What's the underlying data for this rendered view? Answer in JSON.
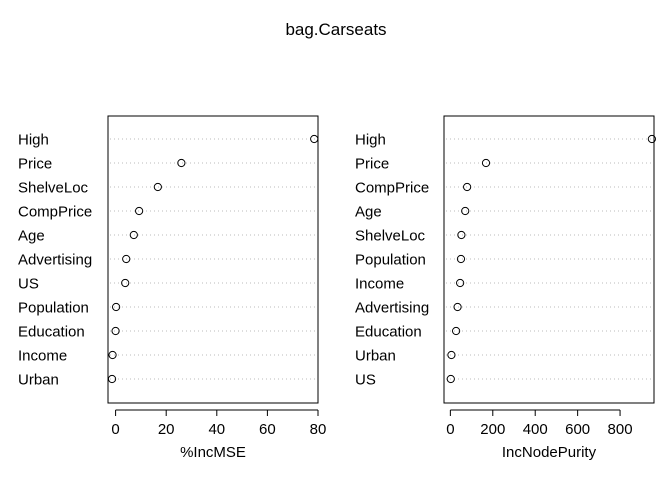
{
  "title": "bag.Carseats",
  "chart_data": [
    {
      "type": "scatter",
      "style": "dotchart",
      "xlabel": "%IncMSE",
      "xlim": [
        -3,
        80
      ],
      "xticks": [
        0,
        20,
        40,
        60,
        80
      ],
      "grid": "dotted horizontal guide lines",
      "categories": [
        "High",
        "Price",
        "ShelveLoc",
        "CompPrice",
        "Age",
        "Advertising",
        "US",
        "Population",
        "Education",
        "Income",
        "Urban"
      ],
      "values": [
        78.5,
        26.0,
        16.7,
        9.3,
        7.2,
        4.2,
        3.8,
        0.2,
        0.0,
        -1.2,
        -1.4
      ]
    },
    {
      "type": "scatter",
      "style": "dotchart",
      "xlabel": "IncNodePurity",
      "xlim": [
        -30,
        960
      ],
      "xticks": [
        0,
        200,
        400,
        600,
        800
      ],
      "grid": "dotted horizontal guide lines",
      "categories": [
        "High",
        "Price",
        "CompPrice",
        "Age",
        "ShelveLoc",
        "Population",
        "Income",
        "Advertising",
        "Education",
        "Urban",
        "US"
      ],
      "values": [
        950,
        168,
        79,
        70,
        52,
        50,
        46,
        34,
        27,
        5,
        2
      ]
    }
  ]
}
